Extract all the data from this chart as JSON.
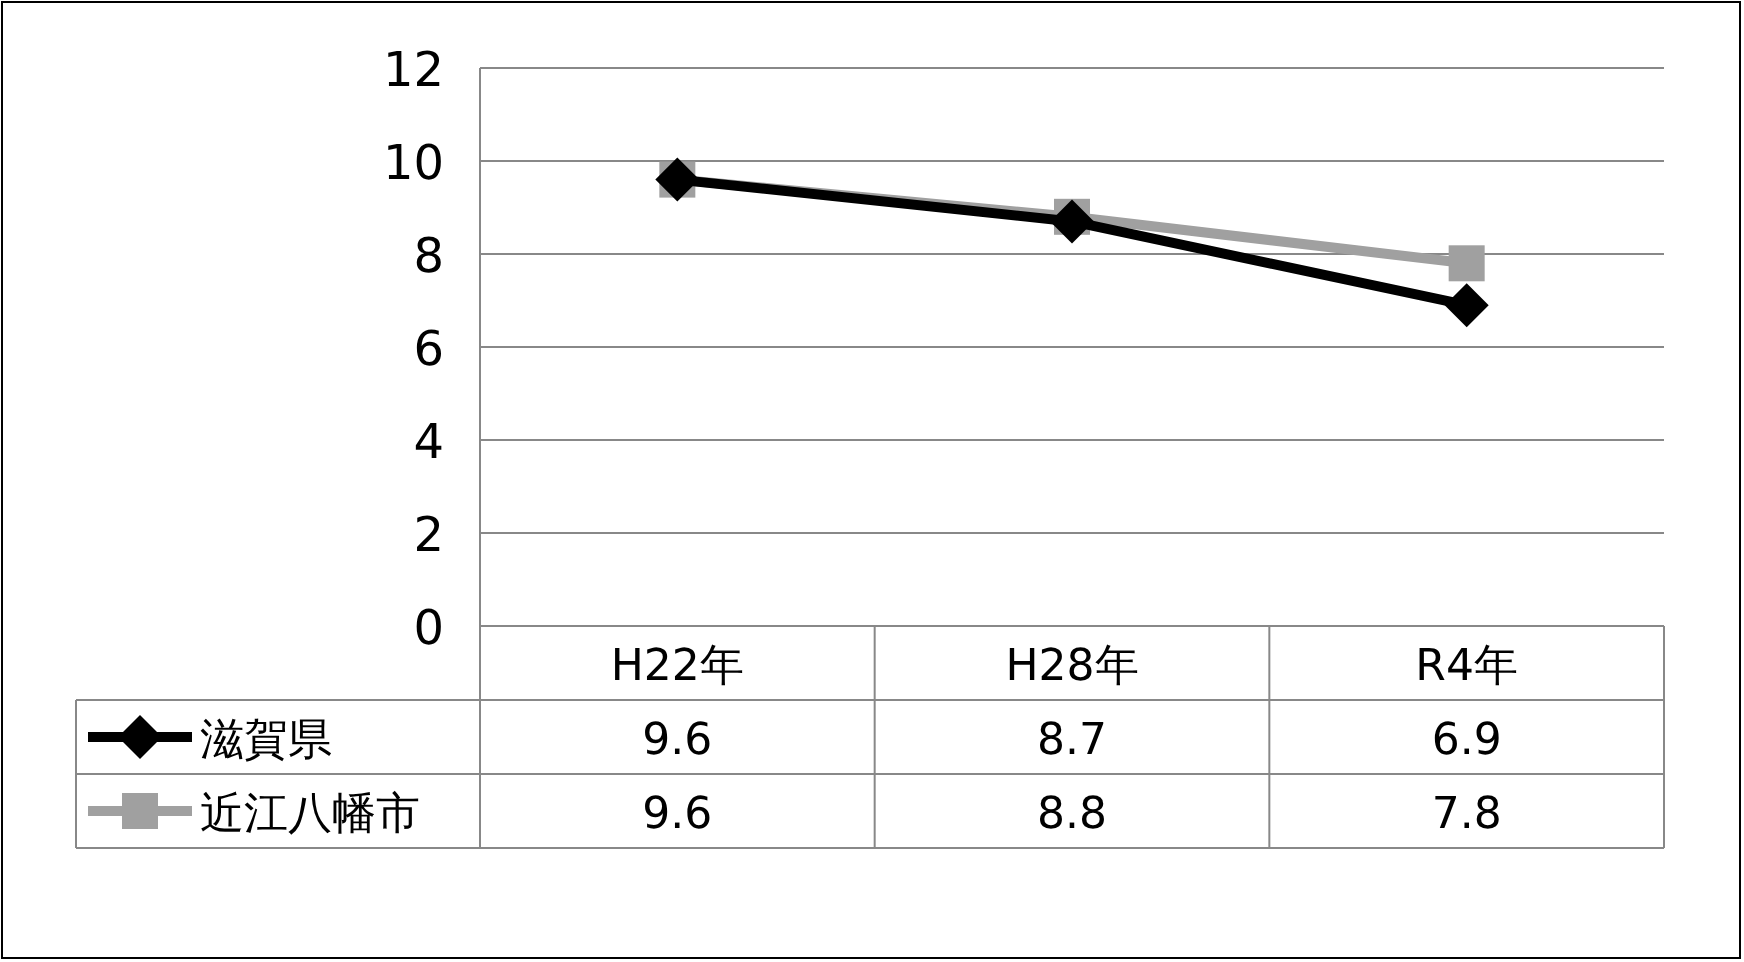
{
  "chart_data": {
    "type": "line",
    "categories": [
      "H22年",
      "H28年",
      "R4年"
    ],
    "series": [
      {
        "name": "滋賀県",
        "color": "#000000",
        "marker": "diamond",
        "values": [
          9.6,
          8.7,
          6.9
        ]
      },
      {
        "name": "近江八幡市",
        "color": "#a0a0a0",
        "marker": "square",
        "values": [
          9.6,
          8.8,
          7.8
        ]
      }
    ],
    "ylim": [
      0,
      12
    ],
    "yticks": [
      0,
      2,
      4,
      6,
      8,
      10,
      12
    ],
    "grid": "y",
    "legend": "bottom",
    "data_labels": true
  }
}
